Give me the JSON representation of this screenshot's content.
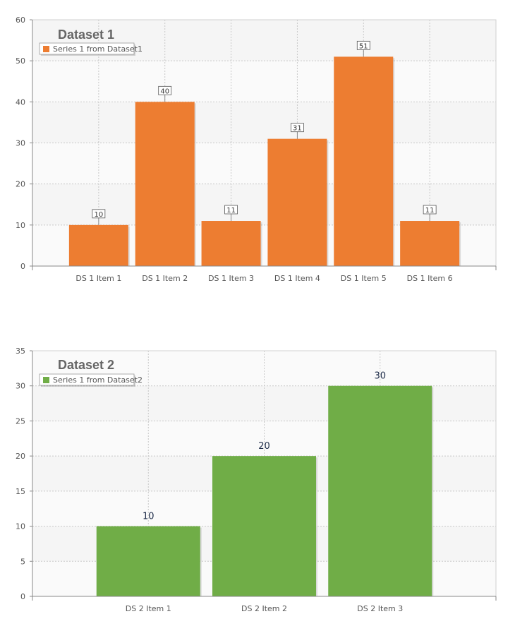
{
  "chart_data": [
    {
      "type": "bar",
      "title": "Dataset 1",
      "xlabel": "",
      "ylabel": "",
      "categories": [
        "DS 1 Item 1",
        "DS 1 Item 2",
        "DS 1 Item 3",
        "DS 1 Item 4",
        "DS 1 Item 5",
        "DS 1 Item 6"
      ],
      "series": [
        {
          "name": "Series 1 from Dataset1",
          "values": [
            10,
            40,
            11,
            31,
            51,
            11
          ],
          "color": "#ed7d31"
        }
      ],
      "ylim": [
        0,
        60
      ],
      "yticks": [
        0,
        10,
        20,
        30,
        40,
        50,
        60
      ],
      "grid": true,
      "legend_position": "top-left",
      "data_label_style": "boxed"
    },
    {
      "type": "bar",
      "title": "Dataset 2",
      "xlabel": "",
      "ylabel": "",
      "categories": [
        "DS 2 Item 1",
        "DS 2 Item 2",
        "DS 2 Item 3"
      ],
      "series": [
        {
          "name": "Series 1 from Dataset2",
          "values": [
            10,
            20,
            30
          ],
          "color": "#70ad47"
        }
      ],
      "ylim": [
        0,
        35
      ],
      "yticks": [
        0,
        5,
        10,
        15,
        20,
        25,
        30,
        35
      ],
      "grid": true,
      "legend_position": "top-left",
      "data_label_style": "plain"
    }
  ]
}
